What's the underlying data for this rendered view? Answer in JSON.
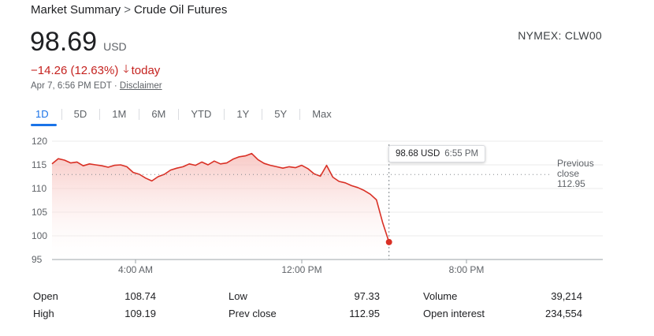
{
  "breadcrumb": {
    "parent": "Market Summary",
    "separator": ">",
    "current": "Crude Oil Futures"
  },
  "quote": {
    "price": "98.69",
    "currency": "USD",
    "ticker": "NYMEX: CLW00",
    "change": "−14.26 (12.63%)",
    "change_direction_icon": "arrow-down-icon",
    "period": "today",
    "timestamp": "Apr 7, 6:56 PM EDT ·",
    "disclaimer": "Disclaimer"
  },
  "range_tabs": [
    {
      "label": "1D",
      "active": true
    },
    {
      "label": "5D",
      "active": false
    },
    {
      "label": "1M",
      "active": false
    },
    {
      "label": "6M",
      "active": false
    },
    {
      "label": "YTD",
      "active": false
    },
    {
      "label": "1Y",
      "active": false
    },
    {
      "label": "5Y",
      "active": false
    },
    {
      "label": "Max",
      "active": false
    }
  ],
  "tooltip": {
    "value": "98.68 USD",
    "time": "6:55 PM"
  },
  "previous_close_label": {
    "line1": "Previous",
    "line2": "close",
    "value": "112.95"
  },
  "colors": {
    "line": "#d93025",
    "change": "#c5221f",
    "accent": "#1a73e8"
  },
  "chart_data": {
    "type": "area",
    "y_ticks": [
      120,
      115,
      110,
      105,
      100,
      95
    ],
    "ylim": [
      95,
      120
    ],
    "x_ticks": [
      "4:00 AM",
      "12:00 PM",
      "8:00 PM"
    ],
    "previous_close": 112.95,
    "series": [
      {
        "x": [
          0,
          0.3,
          0.6,
          0.9,
          1.2,
          1.5,
          1.8,
          2.1,
          2.4,
          2.7,
          3.0,
          3.3,
          3.6,
          3.9,
          4.2,
          4.5,
          4.8,
          5.1,
          5.4,
          5.7,
          6.0,
          6.3,
          6.6,
          6.9,
          7.2,
          7.5,
          7.8,
          8.1,
          8.4,
          8.7,
          9.0,
          9.3,
          9.6,
          9.9,
          10.2,
          10.5,
          10.8,
          11.1,
          11.4,
          11.7,
          12.0,
          12.3,
          12.6,
          12.9,
          13.2,
          13.5,
          13.8,
          14.1,
          14.4,
          14.7,
          15.0,
          15.3,
          15.6,
          15.9,
          16.2,
          16.5,
          16.8,
          17.1,
          17.4,
          17.7,
          18.0,
          18.3,
          18.6,
          18.9,
          19.1
        ],
        "values": [
          115.2,
          116.3,
          116.0,
          115.4,
          115.6,
          114.8,
          115.2,
          115.0,
          114.8,
          114.5,
          114.9,
          115.0,
          114.6,
          113.4,
          113.0,
          112.2,
          111.6,
          112.5,
          113.0,
          113.9,
          114.3,
          114.6,
          115.2,
          114.9,
          115.6,
          115.0,
          115.8,
          115.2,
          115.4,
          116.2,
          116.7,
          116.9,
          117.4,
          116.1,
          115.3,
          114.9,
          114.6,
          114.3,
          114.6,
          114.4,
          114.9,
          114.2,
          113.1,
          112.6,
          114.9,
          112.4,
          111.5,
          111.2,
          110.6,
          110.2,
          109.6,
          108.8,
          107.6,
          102.7,
          98.68,
          null,
          null,
          null,
          null,
          null,
          null,
          null,
          null,
          null,
          null
        ]
      }
    ]
  },
  "stats": [
    {
      "label": "Open",
      "value": "108.74"
    },
    {
      "label": "High",
      "value": "109.19"
    },
    {
      "label": "Low",
      "value": "97.33"
    },
    {
      "label": "Prev close",
      "value": "112.95"
    },
    {
      "label": "Volume",
      "value": "39,214"
    },
    {
      "label": "Open interest",
      "value": "234,554"
    }
  ]
}
